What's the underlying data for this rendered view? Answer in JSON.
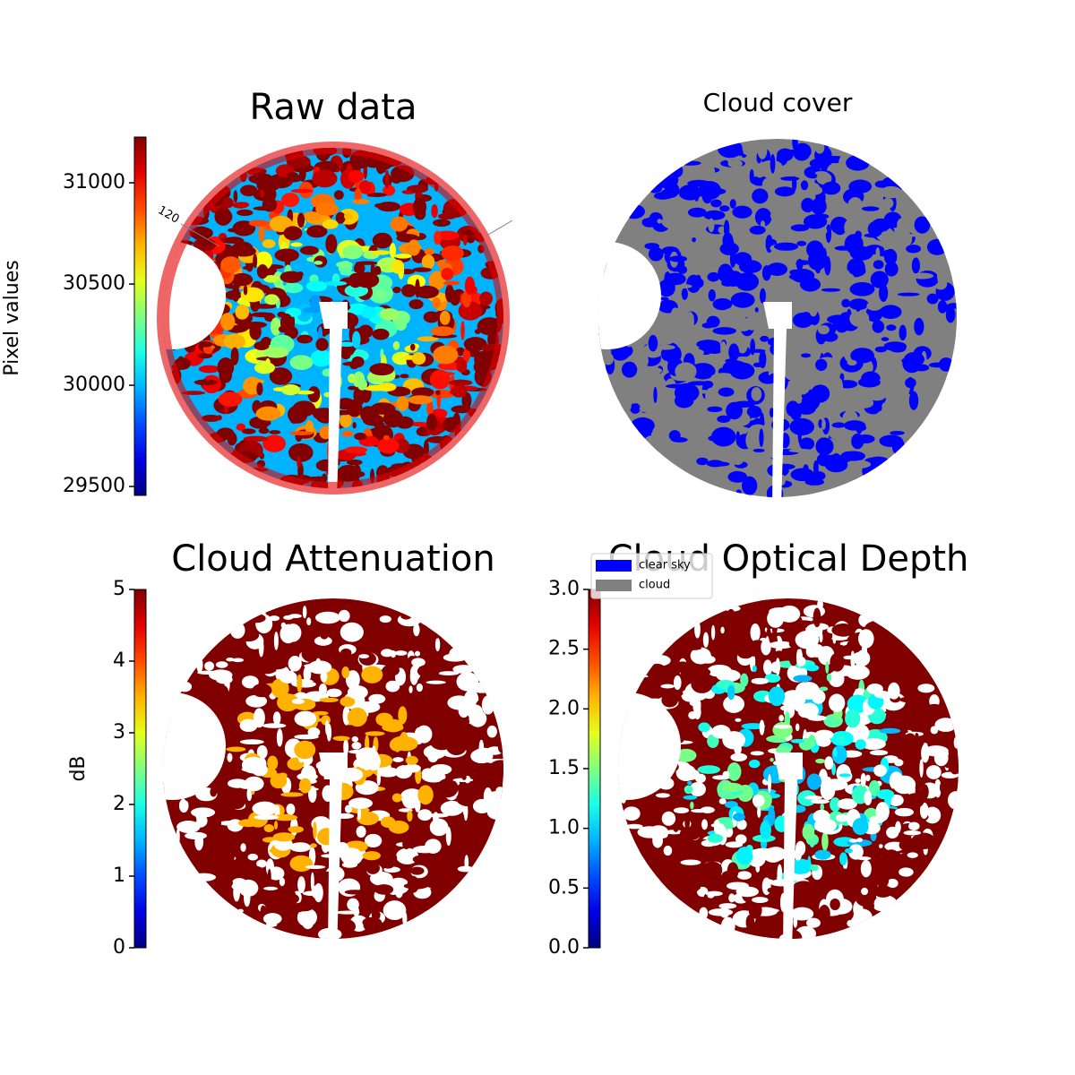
{
  "chart_data": [
    {
      "type": "image",
      "title": "Raw data",
      "colorbar_label": "Pixel values",
      "colormap": "jet",
      "clim": [
        29456,
        31226
      ],
      "cticks": [
        29500,
        30000,
        30500,
        31000
      ],
      "annotations": [
        "120"
      ]
    },
    {
      "type": "image",
      "title": "Cloud cover",
      "series": [
        {
          "name": "clear sky",
          "color": "#0000ff"
        },
        {
          "name": "cloud",
          "color": "#808080"
        }
      ]
    },
    {
      "type": "image",
      "title": "Cloud Attenuation",
      "colorbar_label": "dB",
      "colormap": "jet",
      "clim": [
        0,
        5
      ],
      "cticks": [
        0,
        1,
        2,
        3,
        4,
        5
      ]
    },
    {
      "type": "image",
      "title": "Cloud Optical Depth",
      "colormap": "jet",
      "clim": [
        0,
        3
      ],
      "cticks": [
        {
          "value": 0,
          "label": "0.0"
        },
        0.5,
        {
          "value": 1,
          "label": "1.0"
        },
        1.5,
        {
          "value": 2,
          "label": "2.0"
        },
        2.5,
        {
          "value": 3,
          "label": "3.0"
        }
      ]
    }
  ]
}
